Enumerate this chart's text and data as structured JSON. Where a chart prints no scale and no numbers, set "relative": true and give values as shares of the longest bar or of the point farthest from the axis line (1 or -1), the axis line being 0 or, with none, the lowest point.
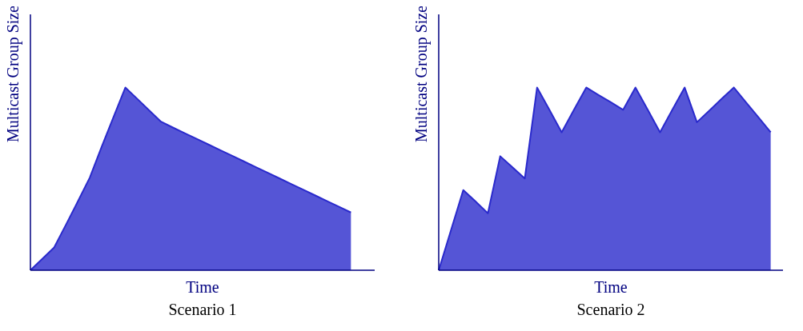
{
  "chart_data": [
    {
      "type": "area",
      "title": "Scenario 1",
      "xlabel": "Time",
      "ylabel": "Multicast Group Size",
      "relative": true,
      "categories": [
        null,
        null,
        null,
        null,
        null,
        null,
        null,
        null,
        null,
        null,
        null,
        null,
        null,
        null,
        null,
        null,
        null,
        null,
        null,
        null,
        null,
        null,
        null,
        null,
        null,
        null,
        null,
        null,
        null,
        null
      ],
      "series": [
        {
          "color": "#2a2acc",
          "values": [
            0,
            0.062,
            0.125,
            0.25,
            0.377,
            0.507,
            0.675,
            0.838,
            1,
            0.938,
            0.875,
            0.813,
            0.781,
            0.75,
            0.719,
            0.688,
            0.657,
            0.626,
            0.595,
            0.564,
            0.533,
            0.502,
            0.471,
            0.44,
            0.409,
            0.378,
            0.347,
            0.316,
            null,
            null
          ]
        }
      ]
    },
    {
      "type": "area",
      "title": "Scenario 2",
      "xlabel": "Time",
      "ylabel": "Multicast Group Size",
      "relative": true,
      "categories": [
        null,
        null,
        null,
        null,
        null,
        null,
        null,
        null,
        null,
        null,
        null,
        null,
        null,
        null,
        null,
        null,
        null,
        null,
        null,
        null,
        null,
        null,
        null,
        null,
        null,
        null,
        null,
        null,
        null
      ],
      "series": [
        {
          "color": "#2a2acc",
          "values": [
            0,
            0.22,
            0.439,
            0.376,
            0.312,
            0.624,
            0.563,
            0.502,
            1,
            0.878,
            0.755,
            0.878,
            1,
            0.959,
            0.919,
            0.878,
            1,
            0.878,
            0.755,
            0.878,
            1,
            0.81,
            0.873,
            0.937,
            1,
            0.918,
            0.837,
            0.755,
            null
          ]
        }
      ]
    }
  ]
}
